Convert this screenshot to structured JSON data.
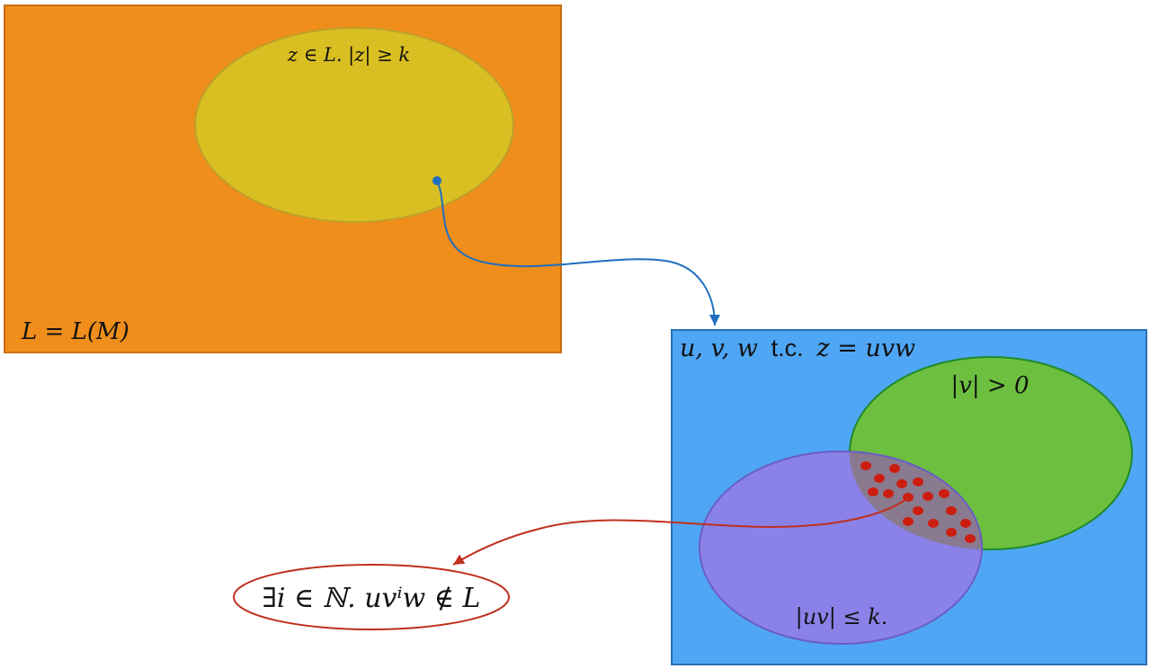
{
  "language_box": {
    "label": "L = L(M)",
    "color": "#f08e1b",
    "border": "#c96f15"
  },
  "word_set": {
    "label": "z ∈ L. |z| ≥ k",
    "color": "#d9bf22",
    "border": "#bf9f2a"
  },
  "decomposition_box": {
    "label_math_1": "u, v, w",
    "label_plain": "t.c.",
    "label_math_2": "z = uvw",
    "color": "#4fa6f5",
    "border": "#2a6fb5"
  },
  "v_nonempty_set": {
    "label": "|v| > 0",
    "color": "#6cbf3f",
    "border": "#1f8a2a"
  },
  "uv_bounded_set": {
    "label": "|uv| ≤ k.",
    "color": "#8f7fe6",
    "border": "#6a5ec4"
  },
  "intersection_dots_color": "#cc1e10",
  "conclusion": {
    "label": "∃i ∈ ℕ. uvⁱw ∉ L",
    "border": "#c0301e"
  },
  "arrows": {
    "map_arrow_color": "#1f6fc0",
    "pump_arrow_color": "#c0301e"
  }
}
